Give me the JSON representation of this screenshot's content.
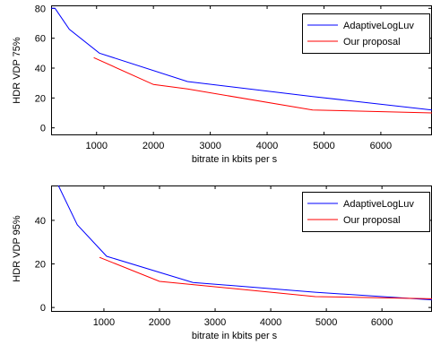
{
  "chart_data": [
    {
      "type": "line",
      "xlabel": "bitrate in kbits per s",
      "ylabel": "HDR VDP 75%",
      "xlim": [
        200,
        6900
      ],
      "ylim": [
        -5,
        82
      ],
      "xticks": [
        1000,
        2000,
        3000,
        4000,
        5000,
        6000
      ],
      "yticks": [
        0,
        20,
        40,
        60,
        80
      ],
      "grid": false,
      "legend_position": "top-right",
      "series": [
        {
          "name": "AdaptiveLogLuv",
          "color": "#0000ff",
          "x": [
            200,
            270,
            520,
            1050,
            2600,
            4800,
            6900
          ],
          "y": [
            80,
            80,
            66,
            50,
            31,
            21,
            12
          ]
        },
        {
          "name": "Our proposal",
          "color": "#ff0000",
          "x": [
            950,
            2000,
            2600,
            4800,
            6900
          ],
          "y": [
            47,
            29,
            26,
            12,
            10
          ]
        }
      ]
    },
    {
      "type": "line",
      "xlabel": "bitrate in kbits per s",
      "ylabel": "HDR VDP 95%",
      "xlim": [
        50,
        6900
      ],
      "ylim": [
        -2,
        56
      ],
      "xticks": [
        1000,
        2000,
        3000,
        4000,
        5000,
        6000
      ],
      "yticks": [
        0,
        20,
        40
      ],
      "grid": false,
      "legend_position": "top-right",
      "series": [
        {
          "name": "AdaptiveLogLuv",
          "color": "#0000ff",
          "x": [
            180,
            520,
            1050,
            2600,
            4800,
            6900
          ],
          "y": [
            56,
            38,
            23.5,
            11.5,
            7,
            3.5
          ]
        },
        {
          "name": "Our proposal",
          "color": "#ff0000",
          "x": [
            920,
            2000,
            2600,
            4800,
            6900
          ],
          "y": [
            23,
            12,
            10.5,
            5,
            4
          ]
        }
      ]
    }
  ]
}
